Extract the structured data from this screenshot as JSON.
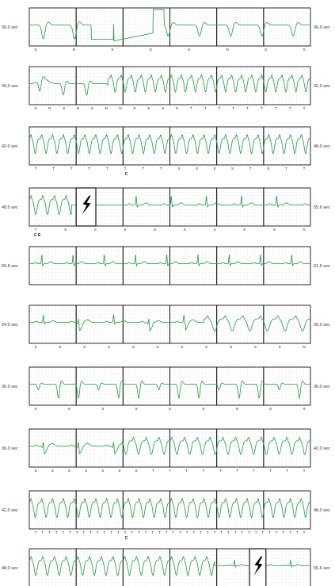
{
  "chart_data": {
    "type": "line",
    "title": "",
    "xlabel": "",
    "ylabel": "",
    "colors": {
      "trace": "#3aa35a",
      "grid": "#cfd8cf",
      "frame": "#111111",
      "shock": "#000000"
    },
    "strips": [
      {
        "start": "30,0 sec",
        "end": "36,0 sec",
        "rhythm": "artifact",
        "beats": [
          "S",
          "N",
          "S",
          "S",
          "S",
          "N",
          "S",
          "S"
        ],
        "markers": []
      },
      {
        "start": "36,0 sec",
        "end": "42,0 sec",
        "rhythm": "vt_onset",
        "beats": [
          "S",
          "N",
          "S",
          "N",
          "S",
          "N",
          "N",
          "S",
          "S",
          "S",
          "S",
          "T",
          "T",
          "T",
          "T",
          "T",
          "T",
          "T",
          "T",
          "T"
        ],
        "markers": []
      },
      {
        "start": "42,0 sec",
        "end": "48,0 sec",
        "rhythm": "vt",
        "beats": [
          "T",
          "T",
          "T",
          "T",
          "T",
          "T",
          "T",
          "T",
          "S",
          "S",
          "S",
          "S",
          "T",
          "S",
          "T",
          "T"
        ],
        "markers": [
          "C"
        ]
      },
      {
        "start": "48,0 sec",
        "end": "55,6 sec",
        "rhythm": "post_shock",
        "beats": [
          "T",
          "S",
          "S",
          "S",
          "S",
          "S",
          "S",
          "S",
          "S",
          "S"
        ],
        "markers": [
          "C",
          "E"
        ],
        "shock": true
      },
      {
        "start": "55,6 sec",
        "end": "61,6 sec",
        "rhythm": "sinus",
        "beats": [],
        "markers": []
      },
      {
        "start": "24,0 sec",
        "end": "30,0 sec",
        "rhythm": "mixed",
        "beats": [
          "S",
          "S",
          "S",
          "S",
          "S",
          "N",
          "S",
          "S",
          "S",
          "S",
          "S",
          "N"
        ],
        "markers": []
      },
      {
        "start": "30,0 sec",
        "end": "36,0 sec",
        "rhythm": "pvc",
        "beats": [
          "S",
          "S",
          "S",
          "S",
          "S",
          "S",
          "S",
          "S",
          "S"
        ],
        "markers": []
      },
      {
        "start": "36,0 sec",
        "end": "42,0 sec",
        "rhythm": "vt_onset2",
        "beats": [
          "S",
          "S",
          "S",
          "S",
          "S",
          "S",
          "S",
          "T",
          "T",
          "T",
          "T",
          "T",
          "T",
          "T",
          "T",
          "T",
          "T"
        ],
        "markers": []
      },
      {
        "start": "42,0 sec",
        "end": "48,0 sec",
        "rhythm": "vt",
        "beats": [
          "T",
          "T",
          "T",
          "T",
          "T",
          "T",
          "T",
          "T",
          "T",
          "T",
          "T",
          "T",
          "T",
          "T",
          "T",
          "T",
          "T",
          "T",
          "T",
          "T",
          "T",
          "T",
          "T",
          "T",
          "T",
          "T",
          "T",
          "T",
          "T",
          "T",
          "T",
          "T",
          "T",
          "T",
          "T",
          "T",
          "T",
          "T",
          "T",
          "T"
        ],
        "markers": [
          "C"
        ]
      },
      {
        "start": "48,0 sec",
        "end": "55,6 sec",
        "rhythm": "vt_shock",
        "beats": [],
        "markers": [],
        "shock": true
      }
    ]
  }
}
